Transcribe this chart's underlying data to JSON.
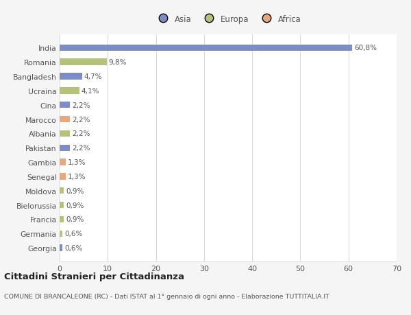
{
  "countries": [
    "Georgia",
    "Germania",
    "Francia",
    "Bielorussia",
    "Moldova",
    "Senegal",
    "Gambia",
    "Pakistan",
    "Albania",
    "Marocco",
    "Cina",
    "Ucraina",
    "Bangladesh",
    "Romania",
    "India"
  ],
  "values": [
    0.6,
    0.6,
    0.9,
    0.9,
    0.9,
    1.3,
    1.3,
    2.2,
    2.2,
    2.2,
    2.2,
    4.1,
    4.7,
    9.8,
    60.8
  ],
  "labels": [
    "0,6%",
    "0,6%",
    "0,9%",
    "0,9%",
    "0,9%",
    "1,3%",
    "1,3%",
    "2,2%",
    "2,2%",
    "2,2%",
    "2,2%",
    "4,1%",
    "4,7%",
    "9,8%",
    "60,8%"
  ],
  "colors": [
    "#7b8cc7",
    "#b5c27a",
    "#b5c27a",
    "#b5c27a",
    "#b5c27a",
    "#e8a87c",
    "#e8a87c",
    "#7b8cc7",
    "#b5c27a",
    "#e8a87c",
    "#7b8cc7",
    "#b5c27a",
    "#7b8cc7",
    "#b5c27a",
    "#7b8cc7"
  ],
  "continent_colors": {
    "Asia": "#7b8cc7",
    "Europa": "#b5c27a",
    "Africa": "#e8a87c"
  },
  "title": "Cittadini Stranieri per Cittadinanza",
  "subtitle": "COMUNE DI BRANCALEONE (RC) - Dati ISTAT al 1° gennaio di ogni anno - Elaborazione TUTTITALIA.IT",
  "xlim": [
    0,
    70
  ],
  "xticks": [
    0,
    10,
    20,
    30,
    40,
    50,
    60,
    70
  ],
  "background_color": "#f5f5f5",
  "bar_background": "#ffffff",
  "grid_color": "#d8d8d8",
  "text_color": "#555555"
}
